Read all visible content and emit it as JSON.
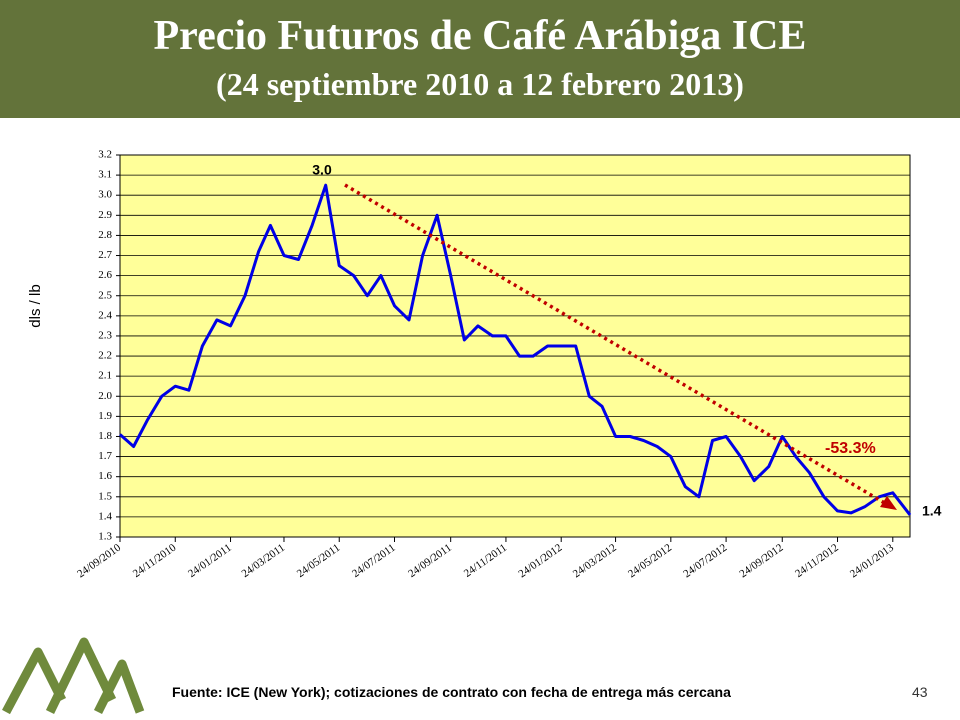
{
  "chart_data": {
    "type": "line",
    "title": "Precio Futuros de Café Arábiga ICE",
    "subtitle": "(24 septiembre 2010 a 12 febrero 2013)",
    "y_label": "dls / lb",
    "color": "#0000e6",
    "background": "#ffff99",
    "grid": true,
    "x": [
      "24/09/2010",
      "09/10/2010",
      "24/10/2010",
      "09/11/2010",
      "24/11/2010",
      "09/12/2010",
      "24/12/2010",
      "09/01/2011",
      "24/01/2011",
      "09/02/2011",
      "24/02/2011",
      "09/03/2011",
      "24/03/2011",
      "09/04/2011",
      "24/04/2011",
      "09/05/2011",
      "24/05/2011",
      "09/06/2011",
      "24/06/2011",
      "09/07/2011",
      "24/07/2011",
      "09/08/2011",
      "24/08/2011",
      "09/09/2011",
      "24/09/2011",
      "09/10/2011",
      "24/10/2011",
      "09/11/2011",
      "24/11/2011",
      "09/12/2011",
      "24/12/2011",
      "09/01/2012",
      "24/01/2012",
      "09/02/2012",
      "24/02/2012",
      "09/03/2012",
      "24/03/2012",
      "09/04/2012",
      "24/04/2012",
      "09/05/2012",
      "24/05/2012",
      "09/06/2012",
      "24/06/2012",
      "09/07/2012",
      "24/07/2012",
      "09/08/2012",
      "24/08/2012",
      "09/09/2012",
      "24/09/2012",
      "09/10/2012",
      "24/10/2012",
      "09/11/2012",
      "24/11/2012",
      "09/12/2012",
      "24/12/2012",
      "09/01/2013",
      "24/01/2013",
      "12/02/2013"
    ],
    "values": [
      1.81,
      1.75,
      1.88,
      2.0,
      2.05,
      2.03,
      2.25,
      2.38,
      2.35,
      2.5,
      2.72,
      2.85,
      2.7,
      2.68,
      2.85,
      3.05,
      2.65,
      2.6,
      2.5,
      2.6,
      2.45,
      2.38,
      2.7,
      2.9,
      2.6,
      2.28,
      2.35,
      2.3,
      2.3,
      2.2,
      2.2,
      2.25,
      2.25,
      2.25,
      2.0,
      1.95,
      1.8,
      1.8,
      1.78,
      1.75,
      1.7,
      1.55,
      1.5,
      1.78,
      1.8,
      1.7,
      1.58,
      1.65,
      1.8,
      1.7,
      1.62,
      1.5,
      1.43,
      1.42,
      1.45,
      1.5,
      1.52,
      1.41
    ],
    "xlim": [
      "24/09/2010",
      "12/02/2013"
    ],
    "xticks": [
      "24/09/2010",
      "24/11/2010",
      "24/01/2011",
      "24/03/2011",
      "24/05/2011",
      "24/07/2011",
      "24/09/2011",
      "24/11/2011",
      "24/01/2012",
      "24/03/2012",
      "24/05/2012",
      "24/07/2012",
      "24/09/2012",
      "24/11/2012",
      "24/01/2013"
    ],
    "ylim": [
      1.3,
      3.2
    ],
    "yticks": [
      1.3,
      1.4,
      1.5,
      1.6,
      1.7,
      1.8,
      1.9,
      {
        "value": 2,
        "label": "2.0"
      },
      2.1,
      2.2,
      2.3,
      2.4,
      2.5,
      2.6,
      2.7,
      2.8,
      2.9,
      {
        "value": 3,
        "label": "3.0"
      },
      3.1,
      3.2
    ],
    "annotations": [
      "3.0",
      "1.4",
      "-53.3%"
    ]
  },
  "footer": {
    "source": "Fuente: ICE (New York); cotizaciones de contrato con fecha de entrega más cercana",
    "page": "43"
  }
}
